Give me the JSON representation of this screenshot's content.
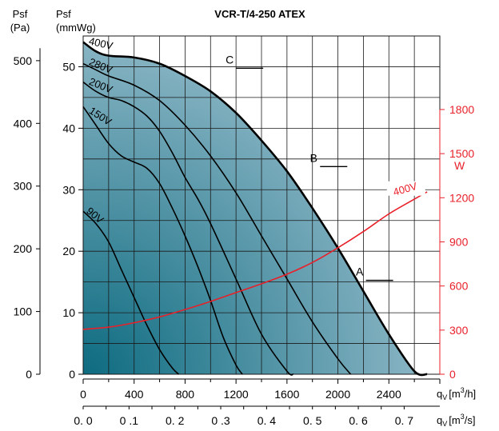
{
  "chart_data": {
    "type": "line",
    "title": "VCR-T/4-250 ATEX",
    "y_axis_left_outer": {
      "label_line1": "Psf",
      "label_line2": "(Pa)",
      "ticks": [
        0,
        100,
        200,
        300,
        400,
        500
      ],
      "tick_labels": [
        "0",
        "100",
        "200",
        "300",
        "400",
        "500"
      ]
    },
    "y_axis_left_inner": {
      "label_line1": "Psf",
      "label_line2": "(mmWg)",
      "ticks": [
        0,
        10,
        20,
        30,
        40,
        50
      ],
      "tick_labels": [
        "0",
        "10",
        "20",
        "30",
        "40",
        "50"
      ]
    },
    "y_axis_right": {
      "label": "W",
      "color": "#e8202a",
      "ticks": [
        0,
        300,
        600,
        900,
        1200,
        1500,
        1800
      ],
      "tick_labels": [
        "0",
        "300",
        "600",
        "900",
        "1200",
        "1500",
        "1800"
      ]
    },
    "x_axis_top": {
      "label_prefix": "q",
      "label_sub": "V",
      "label_unit": "[m",
      "label_sup": "3",
      "label_suffix": "/h]",
      "ticks": [
        0,
        400,
        800,
        1200,
        1600,
        2000,
        2400
      ],
      "tick_labels": [
        "0",
        "400",
        "800",
        "1200",
        "1600",
        "2000",
        "2400"
      ]
    },
    "x_axis_bottom": {
      "label_prefix": "q",
      "label_sub": "V",
      "label_unit": "[m",
      "label_sup": "3",
      "label_suffix": "/s]",
      "ticks": [
        0,
        0.1,
        0.2,
        0.3,
        0.4,
        0.5,
        0.6,
        0.7
      ],
      "tick_labels": [
        "0. 0",
        "0 .1",
        "0. 2",
        "0 .3",
        "0. 4",
        "0. 5",
        "0. 6",
        "0. 7"
      ]
    },
    "xlim": [
      0,
      2800
    ],
    "ylim_mmwg": [
      0,
      55
    ],
    "right_axis_range_w": [
      0,
      2300
    ],
    "grid": true,
    "fill_color_light": "#a6c6d4",
    "fill_color_dark": "#0d6b80",
    "series": [
      {
        "name": "400V",
        "x": [
          0,
          100,
          200,
          400,
          600,
          800,
          1000,
          1200,
          1400,
          1600,
          1800,
          2000,
          2200,
          2400,
          2600,
          2700
        ],
        "y": [
          54,
          52.5,
          51.8,
          51.5,
          50.5,
          48.5,
          46,
          42.5,
          38,
          33,
          27,
          20.5,
          13.5,
          6.5,
          0.5,
          0
        ]
      },
      {
        "name": "280V",
        "x": [
          0,
          100,
          200,
          400,
          600,
          800,
          1000,
          1200,
          1400,
          1600,
          1800,
          2000,
          2100
        ],
        "y": [
          50.5,
          49.5,
          48.5,
          47,
          44.5,
          40.5,
          35.5,
          29.5,
          22.5,
          15.5,
          8.5,
          2.5,
          0
        ]
      },
      {
        "name": "200V",
        "x": [
          0,
          100,
          200,
          300,
          400,
          500,
          600,
          700,
          800,
          900,
          1000,
          1200,
          1400,
          1600,
          1650
        ],
        "y": [
          47.5,
          46,
          45,
          44.5,
          43.5,
          42,
          39.5,
          36,
          32,
          28.5,
          24.5,
          15.5,
          6.5,
          0.5,
          0
        ]
      },
      {
        "name": "150V",
        "x": [
          0,
          100,
          200,
          300,
          400,
          500,
          600,
          700,
          800,
          900,
          1000,
          1100,
          1200,
          1250
        ],
        "y": [
          43.5,
          40.5,
          37.5,
          35.5,
          34.5,
          33.5,
          31,
          27,
          22.5,
          17.5,
          12,
          6,
          1.5,
          0
        ]
      },
      {
        "name": "90V",
        "x": [
          0,
          100,
          200,
          300,
          400,
          500,
          600,
          700,
          750
        ],
        "y": [
          26.5,
          24.5,
          21.5,
          17,
          12.5,
          8,
          4,
          1,
          0
        ]
      }
    ],
    "power_curve": {
      "name": "400V",
      "color": "#e8202a",
      "x": [
        0,
        200,
        400,
        600,
        800,
        1000,
        1200,
        1400,
        1600,
        1800,
        2000,
        2200,
        2400,
        2600,
        2700
      ],
      "y_w": [
        305,
        320,
        350,
        390,
        440,
        495,
        555,
        615,
        680,
        760,
        860,
        970,
        1090,
        1190,
        1240
      ]
    },
    "operating_points": [
      {
        "label": "A",
        "x": 2220,
        "y": 15
      },
      {
        "label": "B",
        "x": 1860,
        "y": 33.5
      },
      {
        "label": "C",
        "x": 1200,
        "y": 49.5
      }
    ]
  }
}
